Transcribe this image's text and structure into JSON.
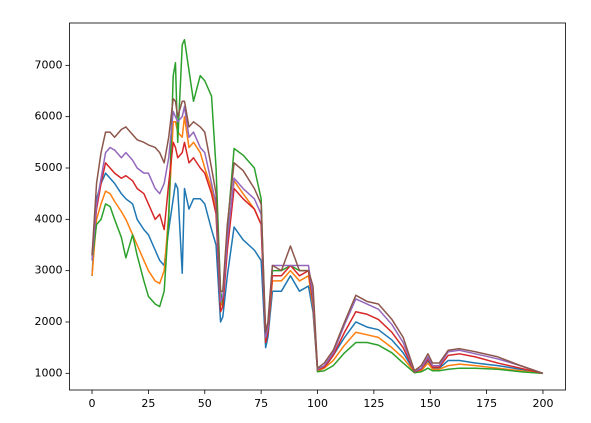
{
  "chart_data": {
    "type": "line",
    "x": [
      0,
      2,
      4,
      6,
      8,
      10,
      13,
      15,
      18,
      20,
      23,
      25,
      28,
      30,
      32,
      34,
      36,
      37,
      38,
      40,
      41,
      43,
      45,
      48,
      50,
      53,
      55,
      57,
      58,
      60,
      63,
      67,
      72,
      75,
      77,
      78,
      80,
      84,
      88,
      92,
      96,
      98,
      100,
      103,
      107,
      112,
      117,
      122,
      127,
      133,
      138,
      143,
      146,
      149,
      151,
      154,
      158,
      163,
      170,
      180,
      190,
      200
    ],
    "series": [
      {
        "color": "#1f77b4",
        "values": [
          2900,
          4400,
          4700,
          4900,
          4800,
          4700,
          4500,
          4400,
          4300,
          4000,
          3800,
          3700,
          3400,
          3200,
          3100,
          3800,
          4400,
          4700,
          4600,
          2950,
          4600,
          4200,
          4400,
          4400,
          4300,
          3800,
          3500,
          2000,
          2100,
          2900,
          3850,
          3600,
          3400,
          3200,
          1500,
          1700,
          2600,
          2600,
          2900,
          2600,
          2700,
          2200,
          1050,
          1100,
          1350,
          1700,
          2000,
          1900,
          1850,
          1650,
          1400,
          1030,
          1080,
          1250,
          1100,
          1100,
          1250,
          1250,
          1200,
          1150,
          1080,
          1000
        ]
      },
      {
        "color": "#ff7f0e",
        "values": [
          2900,
          4000,
          4300,
          4550,
          4500,
          4350,
          4150,
          4000,
          3700,
          3500,
          3200,
          3000,
          2800,
          2750,
          3000,
          4100,
          5900,
          5900,
          5700,
          5600,
          6000,
          5400,
          5500,
          5300,
          5000,
          4600,
          4200,
          2300,
          2400,
          3500,
          4750,
          4500,
          4200,
          3900,
          1700,
          1800,
          2800,
          2800,
          3000,
          2800,
          2900,
          2300,
          1050,
          1100,
          1250,
          1550,
          1800,
          1750,
          1700,
          1500,
          1300,
          1020,
          1050,
          1200,
          1080,
          1080,
          1150,
          1180,
          1150,
          1100,
          1050,
          1000
        ]
      },
      {
        "color": "#2ca02c",
        "values": [
          3200,
          3900,
          4000,
          4300,
          4250,
          4000,
          3650,
          3250,
          3700,
          3300,
          2800,
          2500,
          2350,
          2300,
          2600,
          4000,
          6800,
          7050,
          5500,
          7400,
          7500,
          6900,
          6300,
          6800,
          6700,
          6400,
          5000,
          2600,
          2300,
          3800,
          5380,
          5250,
          5000,
          4400,
          1600,
          1800,
          3000,
          3000,
          3100,
          3000,
          3000,
          2400,
          1030,
          1050,
          1150,
          1400,
          1600,
          1600,
          1550,
          1400,
          1200,
          1010,
          1030,
          1100,
          1050,
          1050,
          1080,
          1100,
          1100,
          1080,
          1030,
          1000
        ]
      },
      {
        "color": "#d62728",
        "values": [
          3300,
          4200,
          4700,
          5100,
          5000,
          4900,
          4800,
          4850,
          4750,
          4600,
          4500,
          4300,
          4000,
          4100,
          3800,
          4700,
          5500,
          5400,
          5200,
          5300,
          5500,
          5100,
          5200,
          5000,
          4900,
          4500,
          4100,
          2200,
          2300,
          3400,
          4600,
          4400,
          4200,
          3900,
          1600,
          1800,
          2900,
          2900,
          3100,
          2900,
          3000,
          2400,
          1070,
          1120,
          1350,
          1800,
          2200,
          2150,
          2050,
          1800,
          1500,
          1030,
          1080,
          1280,
          1120,
          1120,
          1350,
          1380,
          1320,
          1200,
          1100,
          1000
        ]
      },
      {
        "color": "#9467bd",
        "values": [
          3200,
          4300,
          4800,
          5300,
          5400,
          5350,
          5200,
          5300,
          5150,
          5000,
          4900,
          4900,
          4600,
          4500,
          4700,
          5200,
          6100,
          6000,
          5900,
          6000,
          6200,
          5600,
          5700,
          5400,
          5300,
          4700,
          4300,
          2400,
          2500,
          3600,
          4800,
          4600,
          4400,
          4100,
          1700,
          1900,
          3100,
          3100,
          3100,
          3100,
          3100,
          2500,
          1080,
          1150,
          1400,
          1950,
          2450,
          2350,
          2250,
          1950,
          1600,
          1040,
          1100,
          1320,
          1150,
          1150,
          1420,
          1450,
          1380,
          1280,
          1150,
          1000
        ]
      },
      {
        "color": "#8c564b",
        "values": [
          3300,
          4700,
          5300,
          5700,
          5700,
          5600,
          5750,
          5800,
          5650,
          5550,
          5500,
          5450,
          5400,
          5300,
          5100,
          5600,
          6350,
          6300,
          6000,
          6300,
          6300,
          5800,
          5900,
          5800,
          5700,
          5000,
          4500,
          2600,
          2600,
          3900,
          5100,
          4950,
          4600,
          4300,
          1800,
          2000,
          3100,
          3000,
          3480,
          3000,
          3000,
          2700,
          1100,
          1200,
          1450,
          2000,
          2520,
          2400,
          2350,
          2050,
          1700,
          1050,
          1150,
          1380,
          1200,
          1200,
          1450,
          1480,
          1420,
          1320,
          1150,
          1000
        ]
      }
    ],
    "xlim": [
      -10,
      210
    ],
    "xticks": [
      0,
      25,
      50,
      75,
      100,
      125,
      150,
      175,
      200
    ],
    "ylim": [
      675,
      7825
    ],
    "yticks": [
      1000,
      2000,
      3000,
      4000,
      5000,
      6000,
      7000
    ]
  }
}
